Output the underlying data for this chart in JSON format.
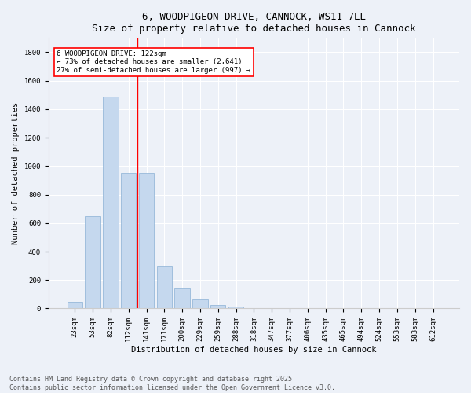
{
  "title": "6, WOODPIGEON DRIVE, CANNOCK, WS11 7LL",
  "subtitle": "Size of property relative to detached houses in Cannock",
  "xlabel": "Distribution of detached houses by size in Cannock",
  "ylabel": "Number of detached properties",
  "categories": [
    "23sqm",
    "53sqm",
    "82sqm",
    "112sqm",
    "141sqm",
    "171sqm",
    "200sqm",
    "229sqm",
    "259sqm",
    "288sqm",
    "318sqm",
    "347sqm",
    "377sqm",
    "406sqm",
    "435sqm",
    "465sqm",
    "494sqm",
    "524sqm",
    "553sqm",
    "583sqm",
    "612sqm"
  ],
  "values": [
    45,
    650,
    1490,
    950,
    950,
    295,
    140,
    65,
    25,
    15,
    5,
    2,
    2,
    2,
    2,
    1,
    1,
    0,
    0,
    0,
    0
  ],
  "bar_color": "#c5d8ee",
  "bar_edge_color": "#8ab0d4",
  "vline_x": 3.5,
  "vline_color": "red",
  "annotation_text": "6 WOODPIGEON DRIVE: 122sqm\n← 73% of detached houses are smaller (2,641)\n27% of semi-detached houses are larger (997) →",
  "annotation_box_color": "white",
  "annotation_box_edge": "red",
  "ylim": [
    0,
    1900
  ],
  "yticks": [
    0,
    200,
    400,
    600,
    800,
    1000,
    1200,
    1400,
    1600,
    1800
  ],
  "bg_color": "#edf1f8",
  "grid_color": "white",
  "footer1": "Contains HM Land Registry data © Crown copyright and database right 2025.",
  "footer2": "Contains public sector information licensed under the Open Government Licence v3.0.",
  "title_fontsize": 9,
  "xlabel_fontsize": 7.5,
  "ylabel_fontsize": 7.5,
  "tick_fontsize": 6.5,
  "annotation_fontsize": 6.5,
  "footer_fontsize": 6
}
